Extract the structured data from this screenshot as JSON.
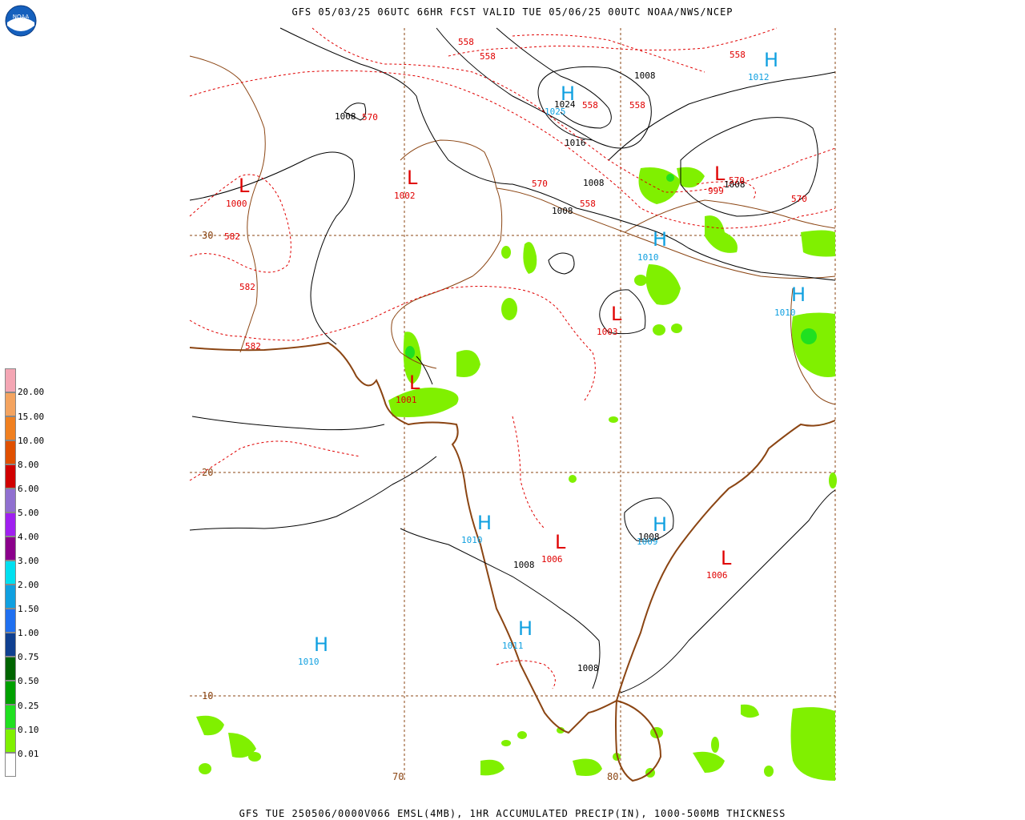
{
  "header": {
    "title": "GFS 05/03/25 06UTC 66HR FCST VALID TUE 05/06/25 00UTC NOAA/NWS/NCEP",
    "footer": "GFS TUE 250506/0000V066 EMSL(4MB), 1HR ACCUMULATED PRECIP(IN), 1000-500MB THICKNESS"
  },
  "logo": {
    "icon": "noaa-logo"
  },
  "legend": {
    "items": [
      {
        "label": "20.00",
        "color": "#f4a6b4"
      },
      {
        "label": "15.00",
        "color": "#f4a460"
      },
      {
        "label": "10.00",
        "color": "#f08020"
      },
      {
        "label": "8.00",
        "color": "#e05000"
      },
      {
        "label": "6.00",
        "color": "#d00000"
      },
      {
        "label": "5.00",
        "color": "#9070d0"
      },
      {
        "label": "4.00",
        "color": "#a020f0"
      },
      {
        "label": "3.00",
        "color": "#8b008b"
      },
      {
        "label": "2.00",
        "color": "#00e0f0"
      },
      {
        "label": "1.50",
        "color": "#10a0e0"
      },
      {
        "label": "1.00",
        "color": "#2070f0"
      },
      {
        "label": "0.75",
        "color": "#104090"
      },
      {
        "label": "0.50",
        "color": "#006400"
      },
      {
        "label": "0.25",
        "color": "#00a000"
      },
      {
        "label": "0.10",
        "color": "#20e020"
      },
      {
        "label": "0.01",
        "color": "#80f000"
      },
      {
        "label": "",
        "color": "#ffffff"
      }
    ]
  },
  "grid": {
    "lat_labels": [
      "30",
      "20",
      "10"
    ],
    "lon_labels": [
      "70",
      "80"
    ]
  },
  "pressure_centers": [
    {
      "type": "L",
      "value": "1000"
    },
    {
      "type": "L",
      "value": "1002"
    },
    {
      "type": "L",
      "value": "1003"
    },
    {
      "type": "L",
      "value": "1001"
    },
    {
      "type": "L",
      "value": "1006"
    },
    {
      "type": "L",
      "value": "1006"
    },
    {
      "type": "L",
      "value": "999"
    },
    {
      "type": "H",
      "value": "1025"
    },
    {
      "type": "H",
      "value": "1012"
    },
    {
      "type": "H",
      "value": "1010"
    },
    {
      "type": "H",
      "value": "1010"
    },
    {
      "type": "H",
      "value": "1010"
    },
    {
      "type": "H",
      "value": "1009"
    },
    {
      "type": "H",
      "value": "1011"
    },
    {
      "type": "H",
      "value": "1010"
    }
  ],
  "isobar_labels": [
    "1008",
    "1024",
    "1016",
    "1008",
    "1008",
    "1008",
    "1008",
    "1008",
    "1008",
    "1008"
  ],
  "thickness_labels": [
    "558",
    "558",
    "558",
    "558",
    "558",
    "558",
    "570",
    "570",
    "570",
    "570",
    "582",
    "582",
    "582"
  ],
  "colors": {
    "precip_light": "#80f000",
    "precip_med": "#20e020",
    "coast": "#8b4513",
    "thickness": "#e00000",
    "isobar": "#000000",
    "high": "#10a0e0",
    "low": "#e00000"
  }
}
